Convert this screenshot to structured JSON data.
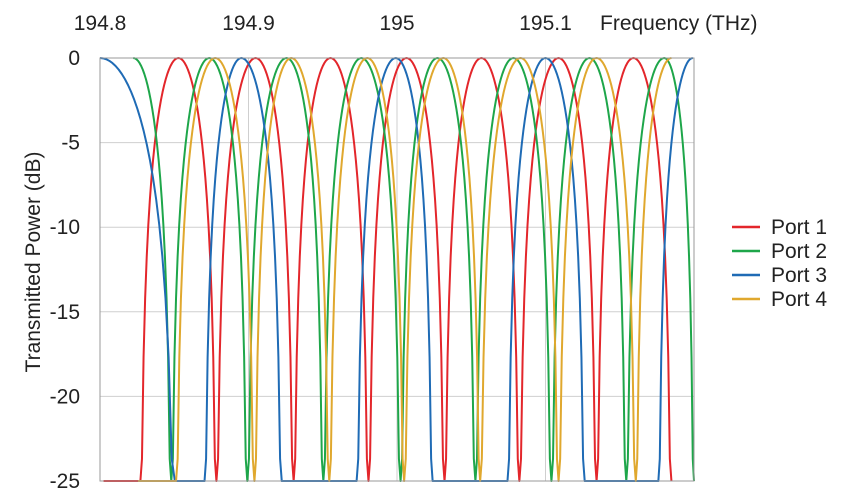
{
  "chart_data": {
    "type": "line",
    "title": "",
    "xlabel": "Frequency (THz)",
    "ylabel": "Transmitted Power (dB)",
    "xlim": [
      194.8,
      195.2
    ],
    "ylim": [
      -25,
      0
    ],
    "x_ticks": [
      194.8,
      194.9,
      195.0,
      195.1
    ],
    "x_tick_labels": [
      "194.8",
      "194.9",
      "195",
      "195.1"
    ],
    "y_ticks": [
      0,
      -5,
      -10,
      -15,
      -20,
      -25
    ],
    "y_tick_labels": [
      "0",
      "-5",
      "-10",
      "-15",
      "-20",
      "-25"
    ],
    "x_axis_position": "top",
    "grid": true,
    "legend": "right",
    "series": [
      {
        "name": "Port 1",
        "color": "#e3262b",
        "peaks": [
          194.8528,
          194.9048,
          194.9552,
          195.0064,
          195.0568,
          195.1088,
          195.1592
        ],
        "nulls": [
          194.8024,
          194.8272,
          194.8784,
          194.9304,
          194.9808,
          195.032,
          195.0824,
          195.1344,
          195.1848
        ]
      },
      {
        "name": "Port 2",
        "color": "#1ea64a",
        "peaks": [
          194.8224,
          194.8736,
          194.9256,
          194.976,
          195.0272,
          195.0784,
          195.1296,
          195.18
        ],
        "nulls": [
          194.848,
          194.8992,
          194.9504,
          195.0024,
          195.0528,
          195.104,
          195.1544,
          195.2
        ]
      },
      {
        "name": "Port 3",
        "color": "#1f6bb5",
        "peaks": [
          194.8,
          194.8952,
          194.9992,
          195.1,
          195.1992
        ],
        "nulls": [
          194.8504,
          194.8704,
          194.9224,
          194.9472,
          194.9728,
          195.024,
          195.0488,
          195.0744,
          195.1264,
          195.1496,
          195.176
        ]
      },
      {
        "name": "Port 4",
        "color": "#e0a82e",
        "peaks": [
          194.8776,
          194.9288,
          194.98,
          195.0312,
          195.0832,
          195.1344,
          195.1848
        ],
        "nulls": [
          194.8256,
          194.8512,
          194.904,
          194.9544,
          195.0048,
          195.056,
          195.1088,
          195.1608
        ]
      }
    ]
  }
}
